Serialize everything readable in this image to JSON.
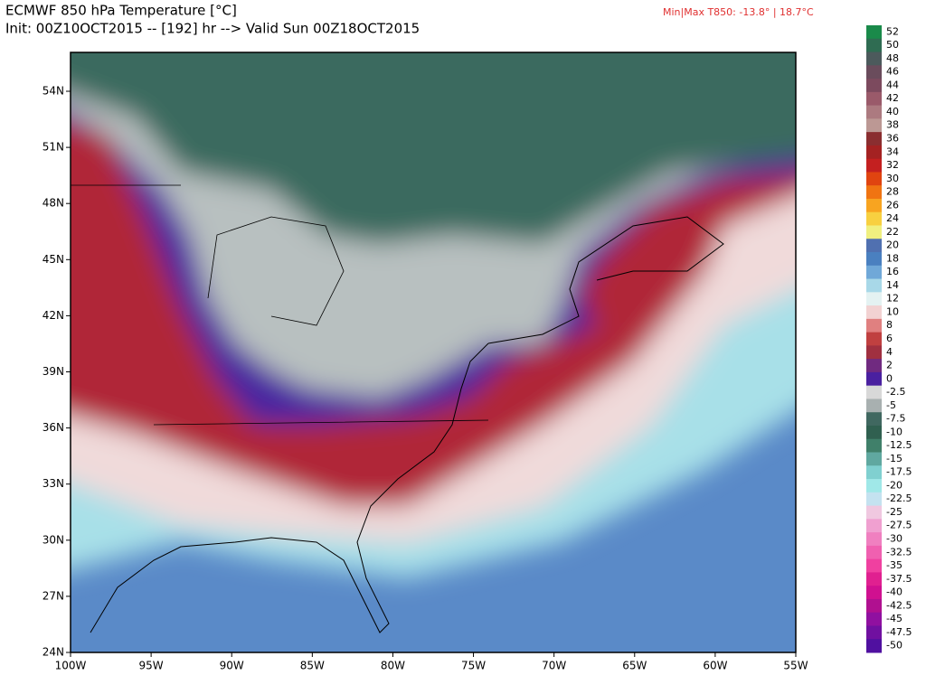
{
  "title": "ECMWF 850 hPa Temperature [°C]",
  "subtitle": "Init: 00Z10OCT2015 -- [192] hr --> Valid Sun 00Z18OCT2015",
  "minmax": "Min|Max T850: -13.8° |  18.7°C",
  "lat_labels": [
    "54N",
    "51N",
    "48N",
    "45N",
    "42N",
    "39N",
    "36N",
    "33N",
    "30N",
    "27N",
    "24N"
  ],
  "lon_labels": [
    "100W",
    "95W",
    "90W",
    "85W",
    "80W",
    "75W",
    "70W",
    "65W",
    "60W",
    "55W"
  ],
  "colorbar": {
    "labels": [
      "52",
      "50",
      "48",
      "46",
      "44",
      "42",
      "40",
      "38",
      "36",
      "34",
      "32",
      "30",
      "28",
      "26",
      "24",
      "22",
      "20",
      "18",
      "16",
      "14",
      "12",
      "10",
      "8",
      "6",
      "4",
      "2",
      "0",
      "-2.5",
      "-5",
      "-7.5",
      "-10",
      "-12.5",
      "-15",
      "-17.5",
      "-20",
      "-22.5",
      "-25",
      "-27.5",
      "-30",
      "-32.5",
      "-35",
      "-37.5",
      "-40",
      "-42.5",
      "-45",
      "-47.5",
      "-50"
    ],
    "colors": [
      "#1a8a4a",
      "#2f6c52",
      "#4c5a5c",
      "#6a4c5c",
      "#7c4a5e",
      "#9a5a6a",
      "#ac7a80",
      "#bc9894",
      "#8a2e30",
      "#a42222",
      "#c42020",
      "#e04410",
      "#f07412",
      "#f8a420",
      "#f8d040",
      "#f0f080",
      "#5070b0",
      "#4a80c0",
      "#70a8d8",
      "#a8d8e8",
      "#e4f2f2",
      "#f2d2d2",
      "#e08080",
      "#c04040",
      "#a03040",
      "#702a80",
      "#4a20a0",
      "#d8d8d8",
      "#a8b0b0",
      "#406860",
      "#306050",
      "#40806a",
      "#60a8a0",
      "#80d0d0",
      "#a0e8e8",
      "#c4e2f0",
      "#f0c8e0",
      "#f0a0d0",
      "#f080c0",
      "#f060b0",
      "#f040a0",
      "#e02090",
      "#d01090",
      "#b01090",
      "#9010a0",
      "#7010a0",
      "#5010a0"
    ]
  }
}
